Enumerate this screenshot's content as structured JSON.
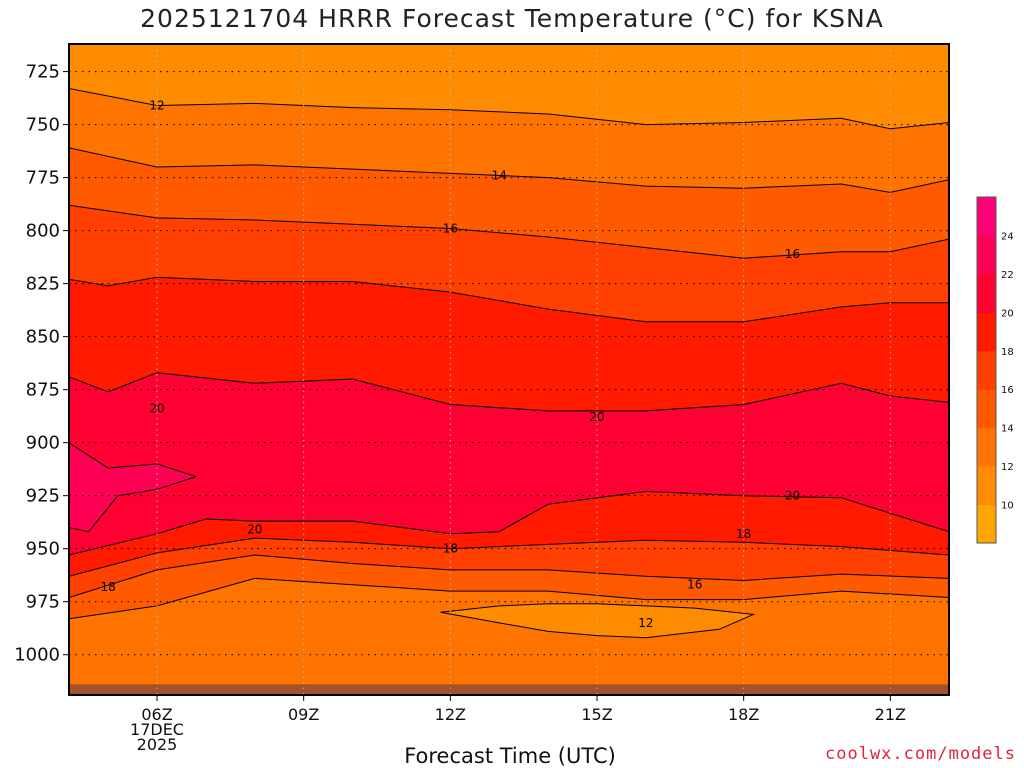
{
  "chart_data": {
    "type": "heatmap",
    "title": "2025121704 HRRR Forecast Temperature (°C) for KSNA",
    "xlabel": "Forecast Time (UTC)",
    "ylabel": "",
    "credit": "coolwx.com/models",
    "x_ticks": [
      {
        "hour": 6,
        "lines": [
          "06Z",
          "17DEC",
          "2025"
        ]
      },
      {
        "hour": 9,
        "lines": [
          "09Z"
        ]
      },
      {
        "hour": 12,
        "lines": [
          "12Z"
        ]
      },
      {
        "hour": 15,
        "lines": [
          "15Z"
        ]
      },
      {
        "hour": 18,
        "lines": [
          "18Z"
        ]
      },
      {
        "hour": 21,
        "lines": [
          "21Z"
        ]
      }
    ],
    "xlim": [
      4.2,
      22.2
    ],
    "y_ticks": [
      725,
      750,
      775,
      800,
      825,
      850,
      875,
      900,
      925,
      950,
      975,
      1000
    ],
    "ylim": [
      712,
      1019
    ],
    "grid": true,
    "colorbar": {
      "ticks": [
        10,
        12,
        14,
        16,
        18,
        20,
        22,
        24
      ],
      "levels": [
        8,
        10,
        12,
        14,
        16,
        18,
        20,
        22,
        24,
        26
      ],
      "colors": [
        "#ffa500",
        "#ff8c00",
        "#ff7300",
        "#ff5a00",
        "#ff4000",
        "#ff1a00",
        "#ff0033",
        "#ff0055",
        "#ff0077"
      ]
    },
    "ground": {
      "color": "#a0522d",
      "level_hpa": 1014
    },
    "contour_labels": [
      {
        "value": "12",
        "hour": 6.0,
        "p": 741
      },
      {
        "value": "14",
        "hour": 13.0,
        "p": 774
      },
      {
        "value": "16",
        "hour": 12.0,
        "p": 799
      },
      {
        "value": "16",
        "hour": 19.0,
        "p": 811
      },
      {
        "value": "20",
        "hour": 6.0,
        "p": 884
      },
      {
        "value": "20",
        "hour": 15.0,
        "p": 888
      },
      {
        "value": "20",
        "hour": 8.0,
        "p": 941
      },
      {
        "value": "20",
        "hour": 19.0,
        "p": 925
      },
      {
        "value": "18",
        "hour": 5.0,
        "p": 968
      },
      {
        "value": "18",
        "hour": 12.0,
        "p": 950
      },
      {
        "value": "18",
        "hour": 18.0,
        "p": 943
      },
      {
        "value": "16",
        "hour": 17.0,
        "p": 967
      },
      {
        "value": "12",
        "hour": 16.0,
        "p": 985
      }
    ],
    "isotherms": [
      {
        "value": 12,
        "hour": [
          4.2,
          6,
          8,
          10,
          12,
          14,
          16,
          18,
          20,
          21,
          22.2
        ],
        "p": [
          733,
          741,
          740,
          742,
          743,
          745,
          750,
          749,
          747,
          752,
          749
        ]
      },
      {
        "value": 14,
        "hour": [
          4.2,
          6,
          8,
          10,
          12,
          14,
          16,
          18,
          20,
          21,
          22.2
        ],
        "p": [
          761,
          770,
          769,
          771,
          773,
          775,
          779,
          780,
          778,
          782,
          776
        ]
      },
      {
        "value": 16,
        "hour": [
          4.2,
          6,
          8,
          10,
          12,
          14,
          16,
          18,
          20,
          21,
          22.2
        ],
        "p": [
          788,
          794,
          795,
          797,
          799,
          803,
          808,
          813,
          810,
          810,
          804
        ]
      },
      {
        "value": 18,
        "hour": [
          4.2,
          5,
          6,
          8,
          10,
          12,
          14,
          16,
          18,
          20,
          21,
          22.2
        ],
        "p": [
          823,
          826,
          822,
          824,
          824,
          829,
          837,
          843,
          843,
          836,
          834,
          834
        ]
      },
      {
        "value": 20,
        "hour": [
          4.2,
          5,
          6,
          8,
          10,
          12,
          14,
          16,
          18,
          20,
          21,
          22.2
        ],
        "p": [
          869,
          876,
          867,
          872,
          870,
          882,
          885,
          885,
          882,
          872,
          878,
          881
        ]
      },
      {
        "value": 20,
        "hour": [
          4.2,
          6,
          7,
          8,
          10,
          12,
          13,
          14,
          16,
          18,
          20,
          22.2
        ],
        "p": [
          953,
          943,
          936,
          937,
          937,
          943,
          942,
          929,
          923,
          925,
          926,
          942
        ]
      },
      {
        "value": 18,
        "hour": [
          4.2,
          6,
          8,
          10,
          12,
          14,
          16,
          18,
          20,
          22.2
        ],
        "p": [
          963,
          952,
          945,
          947,
          950,
          948,
          946,
          947,
          949,
          953
        ]
      },
      {
        "value": 16,
        "hour": [
          4.2,
          6,
          8,
          10,
          12,
          14,
          16,
          18,
          20,
          22.2
        ],
        "p": [
          973,
          960,
          953,
          957,
          960,
          960,
          963,
          965,
          962,
          964
        ]
      },
      {
        "value": 14,
        "hour": [
          4.2,
          6,
          8,
          10,
          12,
          14,
          16,
          18,
          20,
          22.2
        ],
        "p": [
          983,
          977,
          964,
          967,
          970,
          970,
          974,
          974,
          970,
          973
        ]
      },
      {
        "value": 12,
        "hour": [
          11.8,
          13,
          14,
          15,
          16,
          17,
          18.2,
          17.5,
          16,
          15,
          14,
          13,
          11.8
        ],
        "p": [
          980,
          977,
          976,
          976,
          977,
          978,
          981,
          988,
          992,
          991,
          989,
          985,
          980
        ]
      }
    ],
    "warm_pocket": {
      "value": 22,
      "hour": [
        4.2,
        5,
        6,
        6.8,
        6,
        5.2,
        4.6,
        4.2
      ],
      "p": [
        900,
        912,
        910,
        916,
        922,
        925,
        942,
        940
      ]
    }
  }
}
